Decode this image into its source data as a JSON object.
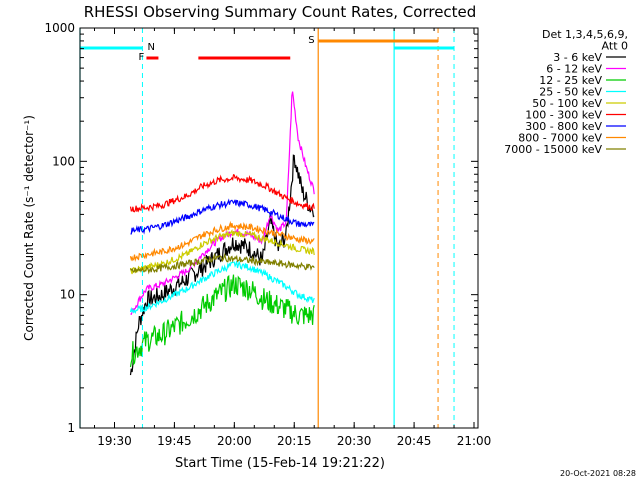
{
  "chart_data": {
    "type": "line",
    "title": "RHESSI Observing Summary Count Rates, Corrected",
    "xlabel": "Start Time (15-Feb-14 19:21:22)",
    "ylabel": "Corrected Count Rate (s⁻¹ detector⁻¹)",
    "yscale": "log",
    "ylim": [
      1,
      1000
    ],
    "xlim": [
      "19:21:22",
      "21:01:00"
    ],
    "x_ticks": [
      "19:30",
      "19:45",
      "20:00",
      "20:15",
      "20:30",
      "20:45",
      "21:00"
    ],
    "y_ticks": [
      "1",
      "10",
      "100",
      "1000"
    ],
    "timestamp": "20-Oct-2021 08:28",
    "legend": {
      "header_lines": [
        "Det 1,3,4,5,6,9,",
        "Att 0"
      ],
      "entries": [
        {
          "label": "3 - 6 keV",
          "color": "#000000"
        },
        {
          "label": "6 - 12 keV",
          "color": "#ff00ff"
        },
        {
          "label": "12 - 25 keV",
          "color": "#00cc00"
        },
        {
          "label": "25 - 50 keV",
          "color": "#00ffff"
        },
        {
          "label": "50 - 100 keV",
          "color": "#cccc00"
        },
        {
          "label": "100 - 300 keV",
          "color": "#ff0000"
        },
        {
          "label": "300 - 800 keV",
          "color": "#0000ff"
        },
        {
          "label": "800 - 7000 keV",
          "color": "#ff8800"
        },
        {
          "label": "7000 - 15000 keV",
          "color": "#808000"
        }
      ]
    },
    "series": [
      {
        "name": "3 - 6 keV",
        "color": "#000000",
        "x": [
          "19:34:00",
          "19:36:00",
          "19:38:00",
          "19:42:00",
          "19:48:00",
          "19:52:00",
          "19:56:00",
          "20:00:00",
          "20:04:00",
          "20:07:00",
          "20:09:00",
          "20:11:00",
          "20:13:00",
          "20:15:00",
          "20:17:00",
          "20:19:00",
          "20:20:00"
        ],
        "values": [
          2.5,
          6,
          9,
          10,
          13,
          16,
          20,
          25,
          22,
          18,
          35,
          22,
          28,
          110,
          60,
          45,
          45
        ]
      },
      {
        "name": "6 - 12 keV",
        "color": "#ff00ff",
        "x": [
          "19:34:00",
          "19:36:00",
          "19:38:00",
          "19:42:00",
          "19:48:00",
          "19:52:00",
          "19:56:00",
          "20:00:00",
          "20:04:00",
          "20:07:00",
          "20:09:00",
          "20:11:00",
          "20:13:00",
          "20:14:30",
          "20:16:00",
          "20:18:00",
          "20:20:00"
        ],
        "values": [
          7,
          9,
          11,
          12,
          15,
          20,
          26,
          30,
          28,
          25,
          40,
          30,
          35,
          350,
          150,
          90,
          60
        ]
      },
      {
        "name": "12 - 25 keV",
        "color": "#00cc00",
        "x": [
          "19:34:00",
          "19:36:00",
          "19:38:00",
          "19:42:00",
          "19:48:00",
          "19:52:00",
          "19:56:00",
          "20:00:00",
          "20:04:00",
          "20:08:00",
          "20:12:00",
          "20:16:00",
          "20:20:00"
        ],
        "values": [
          3.5,
          4,
          4.5,
          5,
          6.5,
          8,
          10,
          12,
          11,
          9,
          8,
          7,
          7
        ]
      },
      {
        "name": "25 - 50 keV",
        "color": "#00ffff",
        "x": [
          "19:34:00",
          "19:38:00",
          "19:42:00",
          "19:48:00",
          "19:52:00",
          "19:56:00",
          "20:00:00",
          "20:04:00",
          "20:08:00",
          "20:12:00",
          "20:16:00",
          "20:20:00"
        ],
        "values": [
          7.5,
          8,
          9,
          11,
          13,
          15,
          17,
          16,
          14,
          12,
          10,
          9
        ]
      },
      {
        "name": "50 - 100 keV",
        "color": "#cccc00",
        "x": [
          "19:34:00",
          "19:38:00",
          "19:42:00",
          "19:48:00",
          "19:52:00",
          "19:56:00",
          "20:00:00",
          "20:04:00",
          "20:08:00",
          "20:12:00",
          "20:16:00",
          "20:20:00"
        ],
        "values": [
          15,
          16,
          17,
          20,
          24,
          27,
          29,
          28,
          26,
          24,
          22,
          21
        ]
      },
      {
        "name": "100 - 300 keV",
        "color": "#ff0000",
        "x": [
          "19:34:00",
          "19:38:00",
          "19:42:00",
          "19:48:00",
          "19:52:00",
          "19:56:00",
          "20:00:00",
          "20:04:00",
          "20:08:00",
          "20:12:00",
          "20:16:00",
          "20:20:00"
        ],
        "values": [
          44,
          45,
          47,
          55,
          65,
          72,
          75,
          72,
          65,
          55,
          48,
          45
        ]
      },
      {
        "name": "300 - 800 keV",
        "color": "#0000ff",
        "x": [
          "19:34:00",
          "19:38:00",
          "19:42:00",
          "19:48:00",
          "19:52:00",
          "19:56:00",
          "20:00:00",
          "20:04:00",
          "20:08:00",
          "20:12:00",
          "20:16:00",
          "20:20:00"
        ],
        "values": [
          30,
          31,
          33,
          38,
          43,
          47,
          49,
          47,
          43,
          38,
          34,
          33
        ]
      },
      {
        "name": "800 - 7000 keV",
        "color": "#ff8800",
        "x": [
          "19:34:00",
          "19:38:00",
          "19:42:00",
          "19:48:00",
          "19:52:00",
          "19:56:00",
          "20:00:00",
          "20:04:00",
          "20:08:00",
          "20:12:00",
          "20:16:00",
          "20:20:00"
        ],
        "values": [
          19,
          20,
          21,
          24,
          28,
          31,
          33,
          32,
          30,
          28,
          26,
          25
        ]
      },
      {
        "name": "7000 - 15000 keV",
        "color": "#808000",
        "x": [
          "19:34:00",
          "19:40:00",
          "19:48:00",
          "19:56:00",
          "20:04:00",
          "20:12:00",
          "20:20:00"
        ],
        "values": [
          15,
          15.5,
          17,
          19,
          18,
          17,
          16
        ]
      }
    ],
    "flags": [
      {
        "label": "N",
        "color": "#00ffff",
        "segments": [
          [
            "19:21:22",
            "19:37:00"
          ],
          [
            "20:40:00",
            "20:55:00"
          ]
        ]
      },
      {
        "label": "F",
        "color": "#ff0000",
        "segments": [
          [
            "19:38:00",
            "19:41:00"
          ],
          [
            "19:51:00",
            "20:14:00"
          ]
        ]
      },
      {
        "label": "S",
        "color": "#ff8800",
        "segments": [
          [
            "20:21:00",
            "20:51:00"
          ]
        ]
      }
    ],
    "solid_vlines": [
      {
        "x": "19:21:22",
        "color": "#00ffff"
      },
      {
        "x": "20:21:00",
        "color": "#ff8800"
      },
      {
        "x": "20:40:00",
        "color": "#00ffff"
      }
    ],
    "dashed_vlines": [
      {
        "x": "19:37:00",
        "color": "#00ffff"
      },
      {
        "x": "20:51:00",
        "color": "#ff8800"
      },
      {
        "x": "20:55:00",
        "color": "#00ffff"
      }
    ]
  }
}
